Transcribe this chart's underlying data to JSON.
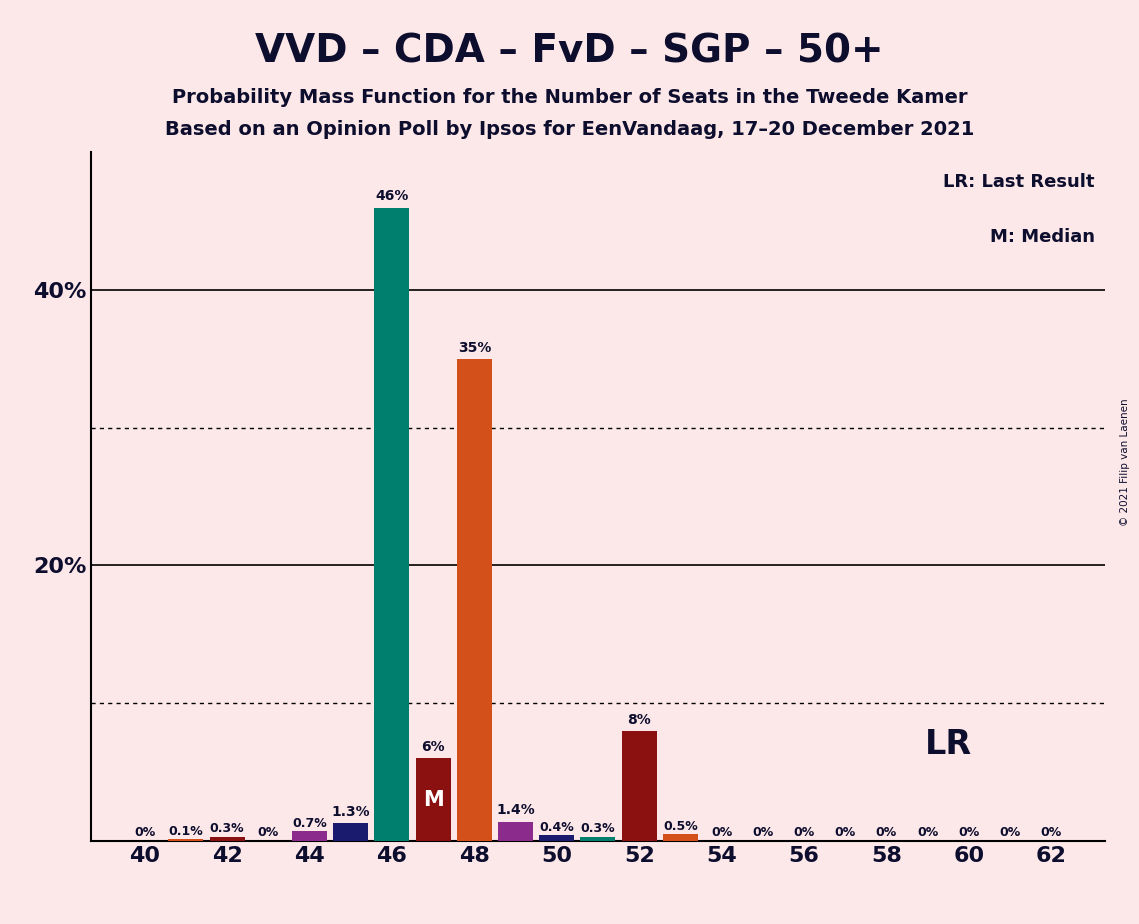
{
  "title": "VVD – CDA – FvD – SGP – 50+",
  "subtitle1": "Probability Mass Function for the Number of Seats in the Tweede Kamer",
  "subtitle2": "Based on an Opinion Poll by Ipsos for EenVandaag, 17–20 December 2021",
  "copyright": "© 2021 Filip van Laenen",
  "background_color": "#fce8e8",
  "legend_LR": "LR: Last Result",
  "legend_M": "M: Median",
  "LR_label": "LR",
  "M_label": "M",
  "x_ticks": [
    40,
    42,
    44,
    46,
    48,
    50,
    52,
    54,
    56,
    58,
    60,
    62
  ],
  "ylim": [
    0,
    50
  ],
  "dotted_lines": [
    10,
    30
  ],
  "solid_lines": [
    20,
    40
  ],
  "bars": [
    {
      "x": 40,
      "value": 0.0,
      "color": "#007e6e",
      "label": "0%"
    },
    {
      "x": 41,
      "value": 0.1,
      "color": "#d4501a",
      "label": "0.1%"
    },
    {
      "x": 42,
      "value": 0.3,
      "color": "#8b1010",
      "label": "0.3%"
    },
    {
      "x": 43,
      "value": 0.0,
      "color": "#007e6e",
      "label": "0%"
    },
    {
      "x": 44,
      "value": 0.7,
      "color": "#8b2b8b",
      "label": "0.7%"
    },
    {
      "x": 45,
      "value": 1.3,
      "color": "#1a1a6e",
      "label": "1.3%"
    },
    {
      "x": 46,
      "value": 46.0,
      "color": "#007e6e",
      "label": "46%"
    },
    {
      "x": 47,
      "value": 6.0,
      "color": "#8b1010",
      "label": "6%"
    },
    {
      "x": 48,
      "value": 35.0,
      "color": "#d4501a",
      "label": "35%"
    },
    {
      "x": 49,
      "value": 1.4,
      "color": "#8b2b8b",
      "label": "1.4%"
    },
    {
      "x": 50,
      "value": 0.4,
      "color": "#1a1a6e",
      "label": "0.4%"
    },
    {
      "x": 51,
      "value": 0.3,
      "color": "#007e6e",
      "label": "0.3%"
    },
    {
      "x": 52,
      "value": 8.0,
      "color": "#8b1010",
      "label": "8%"
    },
    {
      "x": 53,
      "value": 0.5,
      "color": "#d4501a",
      "label": "0.5%"
    },
    {
      "x": 54,
      "value": 0.0,
      "color": "#007e6e",
      "label": "0%"
    },
    {
      "x": 55,
      "value": 0.0,
      "color": "#007e6e",
      "label": "0%"
    },
    {
      "x": 56,
      "value": 0.0,
      "color": "#007e6e",
      "label": "0%"
    },
    {
      "x": 57,
      "value": 0.0,
      "color": "#007e6e",
      "label": "0%"
    },
    {
      "x": 58,
      "value": 0.0,
      "color": "#007e6e",
      "label": "0%"
    },
    {
      "x": 59,
      "value": 0.0,
      "color": "#007e6e",
      "label": "0%"
    },
    {
      "x": 60,
      "value": 0.0,
      "color": "#007e6e",
      "label": "0%"
    },
    {
      "x": 61,
      "value": 0.0,
      "color": "#007e6e",
      "label": "0%"
    },
    {
      "x": 62,
      "value": 0.0,
      "color": "#007e6e",
      "label": "0%"
    }
  ],
  "median_x": 47,
  "LR_x": 52,
  "bar_width": 0.85,
  "title_fontsize": 28,
  "subtitle_fontsize": 14,
  "tick_fontsize": 16,
  "label_fontsize": 9,
  "ytick_positions": [
    20,
    40
  ],
  "ytick_labels": [
    "20%",
    "40%"
  ],
  "text_color": "#0d0d2e"
}
